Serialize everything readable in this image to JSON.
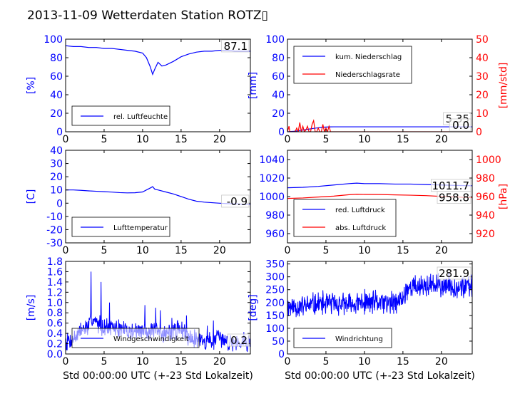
{
  "title": "2013-11-09 Wetterdaten Station ROTZ▯",
  "colors": {
    "primary": "#0000ff",
    "secondary": "#ff0000",
    "axis": "#000000"
  },
  "chart_data": [
    {
      "id": "humidity",
      "type": "line",
      "xlim": [
        0,
        24
      ],
      "ylim": [
        0,
        100
      ],
      "xticks": [
        0,
        5,
        10,
        15,
        20
      ],
      "yticks": [
        0,
        20,
        40,
        60,
        80,
        100
      ],
      "ylabel": "[%]",
      "legend": {
        "placement": "bottom-left",
        "entries": [
          "rel. Luftfeuchte"
        ]
      },
      "annotations": [
        {
          "text": "87.1",
          "series": 0
        }
      ],
      "series": [
        {
          "name": "rel. Luftfeuchte",
          "color": "#0000ff",
          "x": [
            0,
            1,
            2,
            3,
            4,
            5,
            6,
            7,
            8,
            9,
            10,
            10.5,
            11,
            11.3,
            11.6,
            12,
            12.5,
            13,
            13.5,
            14,
            15,
            16,
            17,
            18,
            19,
            20,
            21,
            22,
            23,
            24
          ],
          "y": [
            93,
            92,
            92,
            91,
            91,
            90,
            90,
            89,
            88,
            87,
            85,
            80,
            70,
            62,
            68,
            75,
            71,
            72,
            74,
            76,
            81,
            84,
            86,
            87,
            87,
            88,
            88,
            87,
            87,
            87
          ]
        }
      ]
    },
    {
      "id": "precip",
      "type": "line",
      "xlim": [
        0,
        24
      ],
      "ylim": [
        0,
        100
      ],
      "ylim2": [
        0,
        50
      ],
      "xticks": [
        0,
        5,
        10,
        15,
        20
      ],
      "yticks": [
        0,
        20,
        40,
        60,
        80,
        100
      ],
      "yticks2": [
        0,
        10,
        20,
        30,
        40,
        50
      ],
      "ylabel": "[mm]",
      "ylabel2": "[mm/std]",
      "legend": {
        "placement": "top-left",
        "entries": [
          "kum. Niederschlag",
          "Niederschlagsrate"
        ]
      },
      "annotations": [
        {
          "text": "5.35",
          "series": 0
        },
        {
          "text": "0.0",
          "series": 1
        }
      ],
      "series": [
        {
          "name": "kum. Niederschlag",
          "color": "#0000ff",
          "axis": "left",
          "x": [
            0,
            0.3,
            0.8,
            1.3,
            1.8,
            2.3,
            2.8,
            3.3,
            3.8,
            4.3,
            4.8,
            5.5,
            6,
            8,
            12,
            16,
            20,
            24
          ],
          "y": [
            0,
            0.2,
            0.5,
            1,
            1.6,
            2.2,
            2.9,
            3.5,
            4.1,
            4.6,
            5,
            5.3,
            5.35,
            5.35,
            5.35,
            5.35,
            5.35,
            5.35
          ]
        },
        {
          "name": "Niederschlagsrate",
          "color": "#ff0000",
          "axis": "right",
          "x": [
            0,
            0.2,
            0.3,
            0.5,
            0.8,
            1.0,
            1.2,
            1.4,
            1.6,
            1.8,
            2.0,
            2.2,
            2.4,
            2.6,
            2.8,
            3.0,
            3.2,
            3.4,
            3.6,
            3.8,
            4.0,
            4.2,
            4.4,
            4.6,
            4.8,
            5.0,
            5.2,
            5.4,
            5.6,
            6,
            8,
            12,
            16,
            20,
            24
          ],
          "y": [
            0,
            3,
            0,
            0,
            0,
            0,
            2,
            0,
            5,
            0,
            3,
            0,
            1,
            3,
            0,
            0,
            4,
            6,
            0,
            0,
            2,
            0,
            0,
            4,
            0,
            2,
            0,
            3,
            0,
            0,
            0,
            0,
            0,
            0,
            0
          ]
        }
      ]
    },
    {
      "id": "temperature",
      "type": "line",
      "xlim": [
        0,
        24
      ],
      "ylim": [
        -30,
        40
      ],
      "xticks": [
        0,
        5,
        10,
        15,
        20
      ],
      "yticks": [
        -30,
        -20,
        -10,
        0,
        10,
        20,
        30,
        40
      ],
      "ylabel": "[C]",
      "legend": {
        "placement": "bottom-left",
        "entries": [
          "Lufttemperatur"
        ]
      },
      "annotations": [
        {
          "text": "-0.9",
          "series": 0
        }
      ],
      "series": [
        {
          "name": "Lufttemperatur",
          "color": "#0000ff",
          "x": [
            0,
            1,
            2,
            3,
            4,
            5,
            6,
            7,
            8,
            9,
            10,
            10.5,
            11,
            11.3,
            11.6,
            12,
            13,
            14,
            15,
            16,
            17,
            18,
            19,
            20,
            21,
            22,
            23,
            24
          ],
          "y": [
            10,
            10,
            9.7,
            9.3,
            9,
            8.7,
            8.4,
            8,
            7.8,
            7.9,
            8.5,
            10,
            11.5,
            12.5,
            10.5,
            10,
            8.5,
            7,
            5,
            3,
            1.5,
            0.8,
            0.4,
            0,
            -0.3,
            -0.5,
            -0.8,
            -0.9
          ]
        }
      ]
    },
    {
      "id": "pressure",
      "type": "line",
      "xlim": [
        0,
        24
      ],
      "ylim": [
        950,
        1050
      ],
      "ylim2": [
        910,
        1010
      ],
      "xticks": [
        0,
        5,
        10,
        15,
        20
      ],
      "yticks": [
        960,
        980,
        1000,
        1020,
        1040
      ],
      "yticks2": [
        920,
        940,
        960,
        980,
        1000
      ],
      "ylabel2": "[hPa]",
      "legend": {
        "placement": "bottom-left",
        "entries": [
          "red. Luftdruck",
          "abs. Luftdruck"
        ]
      },
      "annotations": [
        {
          "text": "1011.7",
          "series": 0
        },
        {
          "text": "958.8",
          "series": 1
        }
      ],
      "series": [
        {
          "name": "red. Luftdruck",
          "color": "#0000ff",
          "axis": "left",
          "x": [
            0,
            2,
            4,
            6,
            8,
            9,
            10,
            12,
            14,
            16,
            18,
            20,
            22,
            24
          ],
          "y": [
            1009.5,
            1010,
            1011,
            1012.5,
            1014,
            1014.5,
            1014,
            1014,
            1013.5,
            1013.5,
            1013,
            1012.5,
            1012,
            1011.7
          ]
        },
        {
          "name": "abs. Luftdruck",
          "color": "#ff0000",
          "axis": "right",
          "x": [
            0,
            2,
            4,
            6,
            8,
            9,
            10,
            12,
            14,
            16,
            18,
            20,
            22,
            24
          ],
          "y": [
            958,
            958.5,
            959.5,
            960.5,
            962,
            962.5,
            962.3,
            962.2,
            961.8,
            961.5,
            961,
            960.2,
            959.5,
            958.8
          ]
        }
      ]
    },
    {
      "id": "windspeed",
      "type": "line",
      "xlim": [
        0,
        24
      ],
      "ylim": [
        0,
        1.8
      ],
      "xticks": [
        0,
        5,
        10,
        15,
        20
      ],
      "yticks": [
        0,
        0.2,
        0.4,
        0.6,
        0.8,
        1.0,
        1.2,
        1.4,
        1.6,
        1.8
      ],
      "ylabel": "[m/s]",
      "xlabel": "Std 00:00:00 UTC (+-23 Std Lokalzeit)",
      "legend": {
        "placement": "bottom-left",
        "entries": [
          "Windgeschwindigkeit"
        ]
      },
      "annotations": [
        {
          "text": "0.2",
          "series": 0
        }
      ],
      "series": [
        {
          "name": "Windgeschwindigkeit",
          "color": "#0000ff",
          "noise": {
            "seed": 7,
            "step": 0.05,
            "min": 0.05
          },
          "x": [
            0,
            1,
            2,
            3,
            3.5,
            4,
            5,
            6,
            7,
            8,
            9,
            10,
            11,
            12,
            13,
            14,
            15,
            16,
            17,
            18,
            19,
            20,
            21,
            22,
            23,
            24
          ],
          "y": [
            0.25,
            0.3,
            0.45,
            0.55,
            0.7,
            0.6,
            0.55,
            0.5,
            0.5,
            0.45,
            0.45,
            0.45,
            0.45,
            0.4,
            0.4,
            0.45,
            0.5,
            0.35,
            0.3,
            0.25,
            0.25,
            0.3,
            0.25,
            0.25,
            0.25,
            0.25
          ],
          "amplitude": 0.22,
          "peaks": [
            [
              3.3,
              1.6
            ],
            [
              4.6,
              1.4
            ],
            [
              5.7,
              1.0
            ],
            [
              10.3,
              0.95
            ],
            [
              11.7,
              0.9
            ],
            [
              12.3,
              0.85
            ],
            [
              13.8,
              0.7
            ],
            [
              15.7,
              0.75
            ],
            [
              18.4,
              0.55
            ],
            [
              19.2,
              0.65
            ]
          ]
        }
      ]
    },
    {
      "id": "winddir",
      "type": "line",
      "xlim": [
        0,
        24
      ],
      "ylim": [
        0,
        360
      ],
      "xticks": [
        0,
        5,
        10,
        15,
        20
      ],
      "yticks": [
        0,
        50,
        100,
        150,
        200,
        250,
        300,
        350
      ],
      "ylabel": "[deg]",
      "xlabel": "Std 00:00:00 UTC (+-23 Std Lokalzeit)",
      "legend": {
        "placement": "bottom-left",
        "entries": [
          "Windrichtung"
        ]
      },
      "annotations": [
        {
          "text": "281.9",
          "series": 0
        }
      ],
      "series": [
        {
          "name": "Windrichtung",
          "color": "#0000ff",
          "noise": {
            "seed": 11,
            "step": 0.04,
            "min": 0
          },
          "x": [
            0,
            2,
            4,
            6,
            8,
            10,
            12,
            14,
            15,
            15.5,
            16,
            18,
            20,
            22,
            24
          ],
          "y": [
            185,
            185,
            195,
            195,
            190,
            200,
            200,
            195,
            215,
            255,
            260,
            265,
            265,
            262,
            260
          ],
          "amplitude": 55
        }
      ]
    }
  ]
}
